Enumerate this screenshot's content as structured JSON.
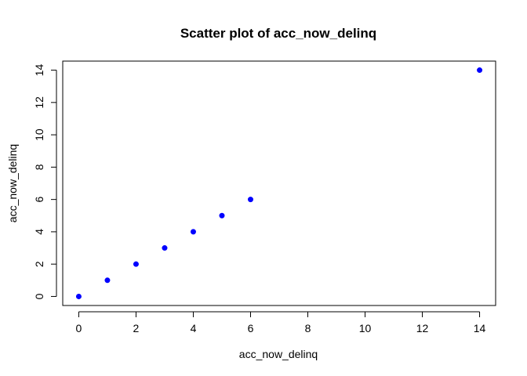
{
  "chart_data": {
    "type": "scatter",
    "title": "Scatter plot of acc_now_delinq",
    "xlabel": "acc_now_delinq",
    "ylabel": "acc_now_delinq",
    "xlim": [
      -0.56,
      14.56
    ],
    "ylim": [
      -0.56,
      14.56
    ],
    "xticks": [
      "0",
      "2",
      "4",
      "6",
      "8",
      "10",
      "12",
      "14"
    ],
    "yticks": [
      "0",
      "2",
      "4",
      "6",
      "8",
      "10",
      "12",
      "14"
    ],
    "grid": false,
    "legend": "none",
    "point_color": "#0000ff",
    "points": [
      {
        "x": 0,
        "y": 0
      },
      {
        "x": 1,
        "y": 1
      },
      {
        "x": 2,
        "y": 2
      },
      {
        "x": 3,
        "y": 3
      },
      {
        "x": 4,
        "y": 4
      },
      {
        "x": 5,
        "y": 5
      },
      {
        "x": 6,
        "y": 6
      },
      {
        "x": 14,
        "y": 14
      }
    ]
  }
}
